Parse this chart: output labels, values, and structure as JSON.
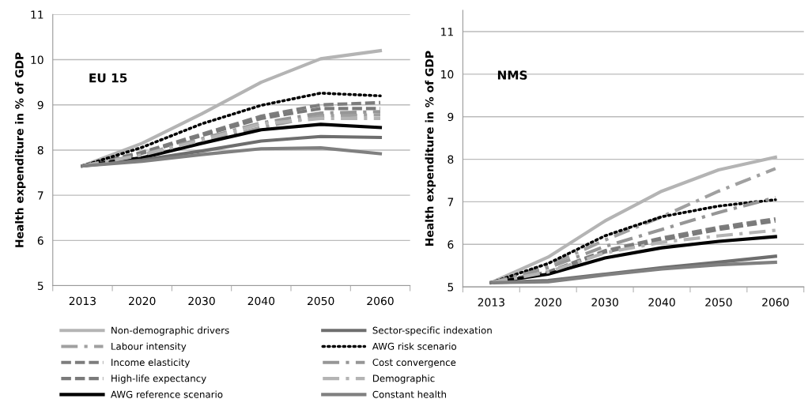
{
  "chart_data": [
    {
      "type": "line",
      "ylabel": "Health expenditure in % of GDP",
      "annotations": [
        "EU 15"
      ],
      "categories": [
        "2013",
        "2020",
        "2030",
        "2040",
        "2050",
        "2060"
      ],
      "ylim": [
        5,
        11
      ],
      "yticks": [
        5,
        6,
        7,
        8,
        9,
        10,
        11
      ],
      "grid": "y",
      "legend": "bottom",
      "marker": "none",
      "series": [
        {
          "name": "Non-demographic drivers",
          "color": "#b4b4b4",
          "line_style": "solid",
          "values": [
            7.65,
            8.15,
            8.8,
            9.5,
            10.02,
            10.2
          ]
        },
        {
          "name": "Labour intensity",
          "color": "#a0a0a0",
          "line_style": "dashdot",
          "values": [
            7.65,
            7.86,
            8.17,
            8.5,
            8.76,
            8.78
          ]
        },
        {
          "name": "Income elasticity",
          "color": "#7d7d7d",
          "line_style": "dashed",
          "values": [
            7.65,
            7.95,
            8.35,
            8.75,
            9.0,
            9.05
          ]
        },
        {
          "name": "High-life expectancy",
          "color": "#7a7a7a",
          "line_style": "dashed",
          "values": [
            7.65,
            7.93,
            8.32,
            8.7,
            8.92,
            8.92
          ]
        },
        {
          "name": "AWG reference scenario",
          "color": "#000000",
          "line_style": "solid",
          "values": [
            7.65,
            7.83,
            8.15,
            8.45,
            8.57,
            8.5
          ]
        },
        {
          "name": "Sector-specific indexation",
          "color": "#6e6e6e",
          "line_style": "solid",
          "values": [
            7.65,
            7.78,
            7.98,
            8.2,
            8.3,
            8.28
          ]
        },
        {
          "name": "AWG risk scenario",
          "color": "#000000",
          "line_style": "dotted",
          "values": [
            7.65,
            8.06,
            8.58,
            8.99,
            9.26,
            9.2
          ]
        },
        {
          "name": "Cost convergence",
          "color": "#969696",
          "line_style": "dashdot",
          "values": [
            7.65,
            7.9,
            8.25,
            8.6,
            8.82,
            8.85
          ]
        },
        {
          "name": "Demographic",
          "color": "#b4b4b4",
          "line_style": "dashdot",
          "values": [
            7.65,
            7.89,
            8.22,
            8.58,
            8.7,
            8.7
          ]
        },
        {
          "name": "Constant health",
          "color": "#808080",
          "line_style": "solid",
          "values": [
            7.65,
            7.75,
            7.9,
            8.03,
            8.05,
            7.92
          ]
        }
      ]
    },
    {
      "type": "line",
      "ylabel": "Health expenditure in % of GDP",
      "annotations": [
        "NMS"
      ],
      "categories": [
        "2013",
        "2020",
        "2030",
        "2040",
        "2050",
        "2060"
      ],
      "ylim": [
        5,
        11.5
      ],
      "yticks": [
        5,
        6,
        7,
        8,
        9,
        10,
        11
      ],
      "grid": "y",
      "marker": "none",
      "series": [
        {
          "color": "#b4b4b4",
          "line_style": "solid",
          "values": [
            5.1,
            5.7,
            6.55,
            7.25,
            7.75,
            8.05
          ]
        },
        {
          "color": "#a0a0a0",
          "line_style": "dashdot",
          "values": [
            5.1,
            5.5,
            6.1,
            6.65,
            7.25,
            7.78
          ]
        },
        {
          "color": "#7d7d7d",
          "line_style": "dashed",
          "values": [
            5.1,
            5.35,
            5.85,
            6.15,
            6.4,
            6.6
          ]
        },
        {
          "color": "#7a7a7a",
          "line_style": "dashed",
          "values": [
            5.1,
            5.33,
            5.82,
            6.1,
            6.35,
            6.55
          ]
        },
        {
          "color": "#000000",
          "line_style": "solid",
          "values": [
            5.1,
            5.3,
            5.68,
            5.92,
            6.07,
            6.18
          ]
        },
        {
          "color": "#6e6e6e",
          "line_style": "solid",
          "values": [
            5.1,
            5.15,
            5.3,
            5.45,
            5.58,
            5.72
          ]
        },
        {
          "color": "#000000",
          "line_style": "dotted",
          "values": [
            5.1,
            5.55,
            6.2,
            6.65,
            6.9,
            7.05
          ]
        },
        {
          "color": "#969696",
          "line_style": "dashdot",
          "values": [
            5.1,
            5.45,
            5.95,
            6.35,
            6.75,
            7.1
          ]
        },
        {
          "color": "#b4b4b4",
          "line_style": "dashdot",
          "values": [
            5.1,
            5.35,
            5.8,
            6.05,
            6.2,
            6.33
          ]
        },
        {
          "color": "#808080",
          "line_style": "solid",
          "values": [
            5.1,
            5.12,
            5.28,
            5.42,
            5.52,
            5.58
          ]
        }
      ]
    }
  ]
}
